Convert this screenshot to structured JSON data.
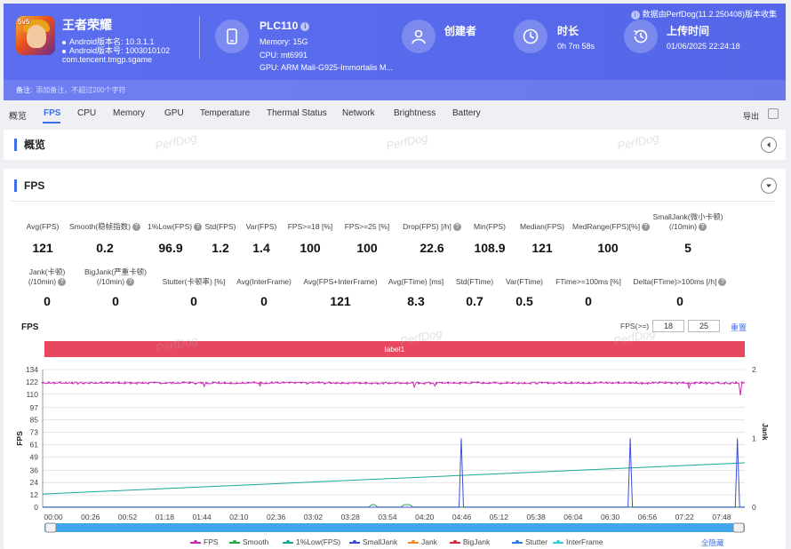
{
  "header": {
    "app_name": "王者荣耀",
    "app_badge": "5v5",
    "android_name_line": "Android版本名: 10.3.1.1",
    "android_code_line": "Android版本号: 1003010102",
    "package": "com.tencent.tmgp.sgame",
    "device_name": "PLC110",
    "memory_line": "Memory: 15G",
    "cpu_line": "CPU: mt6991",
    "gpu_line": "GPU: ARM Mali-G925-Immortalis M...",
    "creator_title": "创建者",
    "duration_title": "时长",
    "duration_value": "0h 7m 58s",
    "upload_title": "上传时间",
    "upload_value": "01/06/2025 22:24:18",
    "collected_by": "数据由PerfDog(11.2.250408)版本收集",
    "note_label": "备注:",
    "note_placeholder": "添加备注，不超过200个字符"
  },
  "tabs": [
    "概览",
    "FPS",
    "CPU",
    "Memory",
    "GPU",
    "Temperature",
    "Thermal Status",
    "Network",
    "Brightness",
    "Battery"
  ],
  "active_tab": "FPS",
  "export_label": "导出",
  "overview_title": "概览",
  "fps_section_title": "FPS",
  "watermark_text": "PerfDog",
  "stats_row1": [
    {
      "label": "Avg(FPS)",
      "value": "121"
    },
    {
      "label": "Smooth(稳帧指数)",
      "value": "0.2",
      "q": true
    },
    {
      "label": "1%Low(FPS)",
      "value": "96.9",
      "q": true
    },
    {
      "label": "Std(FPS)",
      "value": "1.2"
    },
    {
      "label": "Var(FPS)",
      "value": "1.4"
    },
    {
      "label": "FPS>=18 [%]",
      "value": "100"
    },
    {
      "label": "FPS>=25 [%]",
      "value": "100"
    },
    {
      "label": "Drop(FPS) [/h]",
      "value": "22.6",
      "q": true
    },
    {
      "label": "Min(FPS)",
      "value": "108.9"
    },
    {
      "label": "Median(FPS)",
      "value": "121"
    },
    {
      "label": "MedRange(FPS)[%]",
      "value": "100",
      "q": true
    },
    {
      "label": "SmallJank(微小卡顿)",
      "label2": "(/10min)",
      "value": "5",
      "q": true
    }
  ],
  "stats_row2": [
    {
      "label": "Jank(卡顿)",
      "label2": "(/10min)",
      "value": "0",
      "q": true
    },
    {
      "label": "BigJank(严重卡顿)",
      "label2": "(/10min)",
      "value": "0",
      "q": true
    },
    {
      "label": "Stutter(卡顿率) [%]",
      "value": "0"
    },
    {
      "label": "Avg(InterFrame)",
      "value": "0"
    },
    {
      "label": "Avg(FPS+InterFrame)",
      "value": "121"
    },
    {
      "label": "Avg(FTime) [ms]",
      "value": "8.3"
    },
    {
      "label": "Std(FTime)",
      "value": "0.7"
    },
    {
      "label": "Var(FTime)",
      "value": "0.5"
    },
    {
      "label": "FTime>=100ms [%]",
      "value": "0"
    },
    {
      "label": "Delta(FTime)>100ms [/h]",
      "value": "0",
      "q": true
    }
  ],
  "chart_controls": {
    "fps_ge_label": "FPS(>=)",
    "threshold_1": "18",
    "threshold_2": "25",
    "reset_label": "重置",
    "label_band": "label1",
    "hide_all_label": "全隐藏"
  },
  "chart_data": {
    "type": "line",
    "title": "FPS",
    "ylabel": "FPS",
    "y2label": "Jank",
    "ylim": [
      0,
      134
    ],
    "y2lim": [
      0,
      2
    ],
    "yticks": [
      0,
      12,
      24,
      36,
      49,
      61,
      73,
      85,
      97,
      110,
      122,
      134
    ],
    "y2ticks": [
      0,
      1,
      2
    ],
    "xticks": [
      "00:00",
      "00:26",
      "00:52",
      "01:18",
      "01:44",
      "02:10",
      "02:36",
      "03:02",
      "03:28",
      "03:54",
      "04:20",
      "04:46",
      "05:12",
      "05:38",
      "06:04",
      "06:30",
      "06:56",
      "07:22",
      "07:48"
    ],
    "duration_s": 478,
    "series": [
      {
        "name": "FPS",
        "color": "#cc2bb5",
        "base": 121,
        "dips": [
          [
            148,
            118
          ],
          [
            110,
            117.5
          ],
          [
            253,
            117
          ],
          [
            267,
            118
          ],
          [
            440,
            116
          ],
          [
            475,
            109
          ]
        ]
      },
      {
        "name": "Smooth",
        "color": "#2aa84a"
      },
      {
        "name": "1%Low(FPS)",
        "color": "#1aa894",
        "start": 12.9,
        "end": 43.2
      },
      {
        "name": "SmallJank",
        "color": "#3c4ed8",
        "spikes": [
          285,
          400,
          473
        ],
        "spike_height": 1
      },
      {
        "name": "Jank",
        "color": "#f08a24"
      },
      {
        "name": "BigJank",
        "color": "#d8283a"
      },
      {
        "name": "Stutter",
        "color": "#2b7fe0"
      },
      {
        "name": "InterFrame",
        "color": "#39cfd8"
      }
    ]
  }
}
